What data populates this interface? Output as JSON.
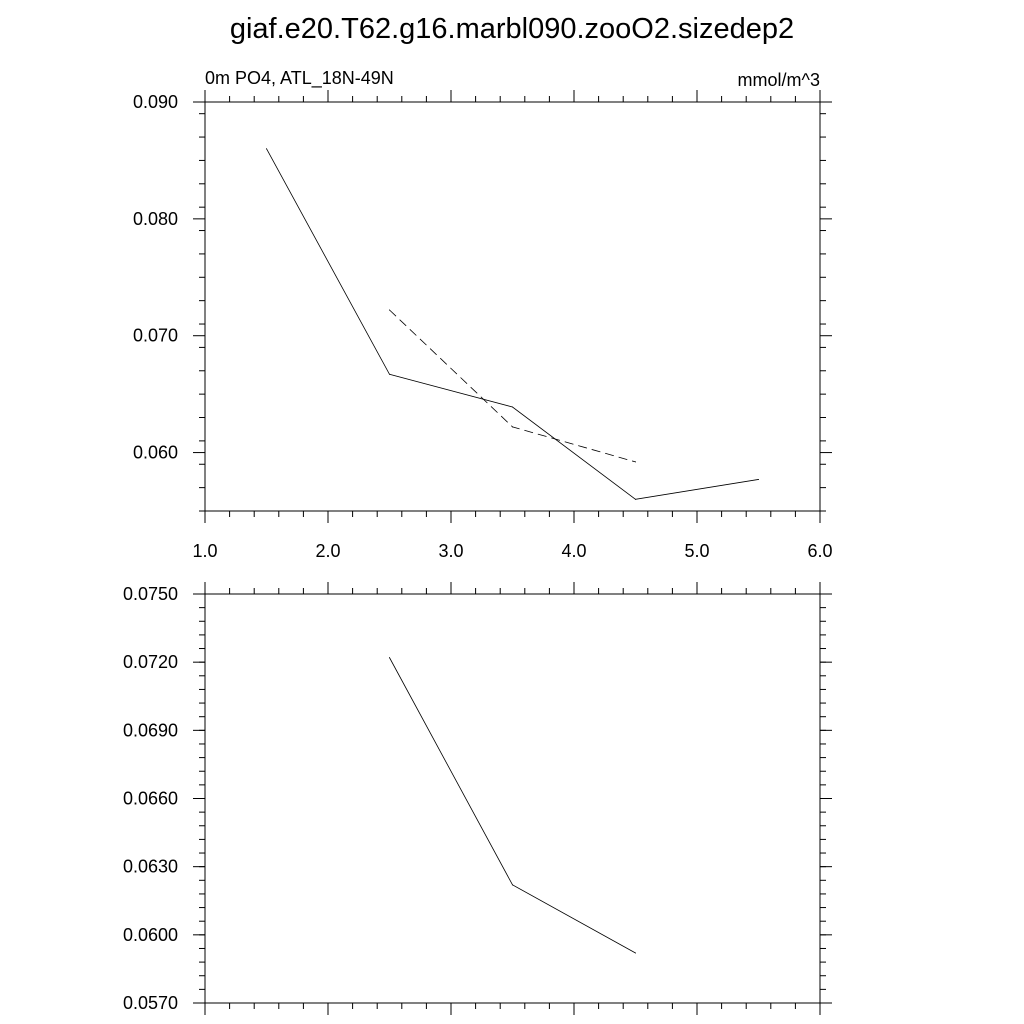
{
  "figure_title": "giaf.e20.T62.g16.marbl090.zooO2.sizedep2",
  "chart_data": [
    {
      "type": "line",
      "title": "",
      "left_label": "0m PO4, ATL_18N-49N",
      "right_label": "mmol/m^3",
      "xlim": [
        1.0,
        6.0
      ],
      "ylim": [
        0.055,
        0.09
      ],
      "x_ticks": [
        "1.0",
        "2.0",
        "3.0",
        "4.0",
        "5.0",
        "6.0"
      ],
      "y_ticks": [
        "0.060",
        "0.070",
        "0.080",
        "0.090"
      ],
      "series": [
        {
          "style": "solid",
          "x": [
            1.5,
            2.5,
            3.5,
            4.5,
            5.5
          ],
          "y": [
            0.086,
            0.0667,
            0.0639,
            0.056,
            0.0577
          ]
        },
        {
          "style": "dashed",
          "x": [
            2.5,
            3.5,
            4.5
          ],
          "y": [
            0.0722,
            0.0622,
            0.0592
          ]
        }
      ]
    },
    {
      "type": "line",
      "title": "",
      "xlim": [
        1.0,
        6.0
      ],
      "ylim": [
        0.057,
        0.075
      ],
      "y_ticks": [
        "0.0570",
        "0.0600",
        "0.0630",
        "0.0660",
        "0.0690",
        "0.0720",
        "0.0750"
      ],
      "series": [
        {
          "style": "solid",
          "x": [
            2.5,
            3.5,
            4.5
          ],
          "y": [
            0.0722,
            0.0622,
            0.0592
          ]
        }
      ]
    }
  ]
}
